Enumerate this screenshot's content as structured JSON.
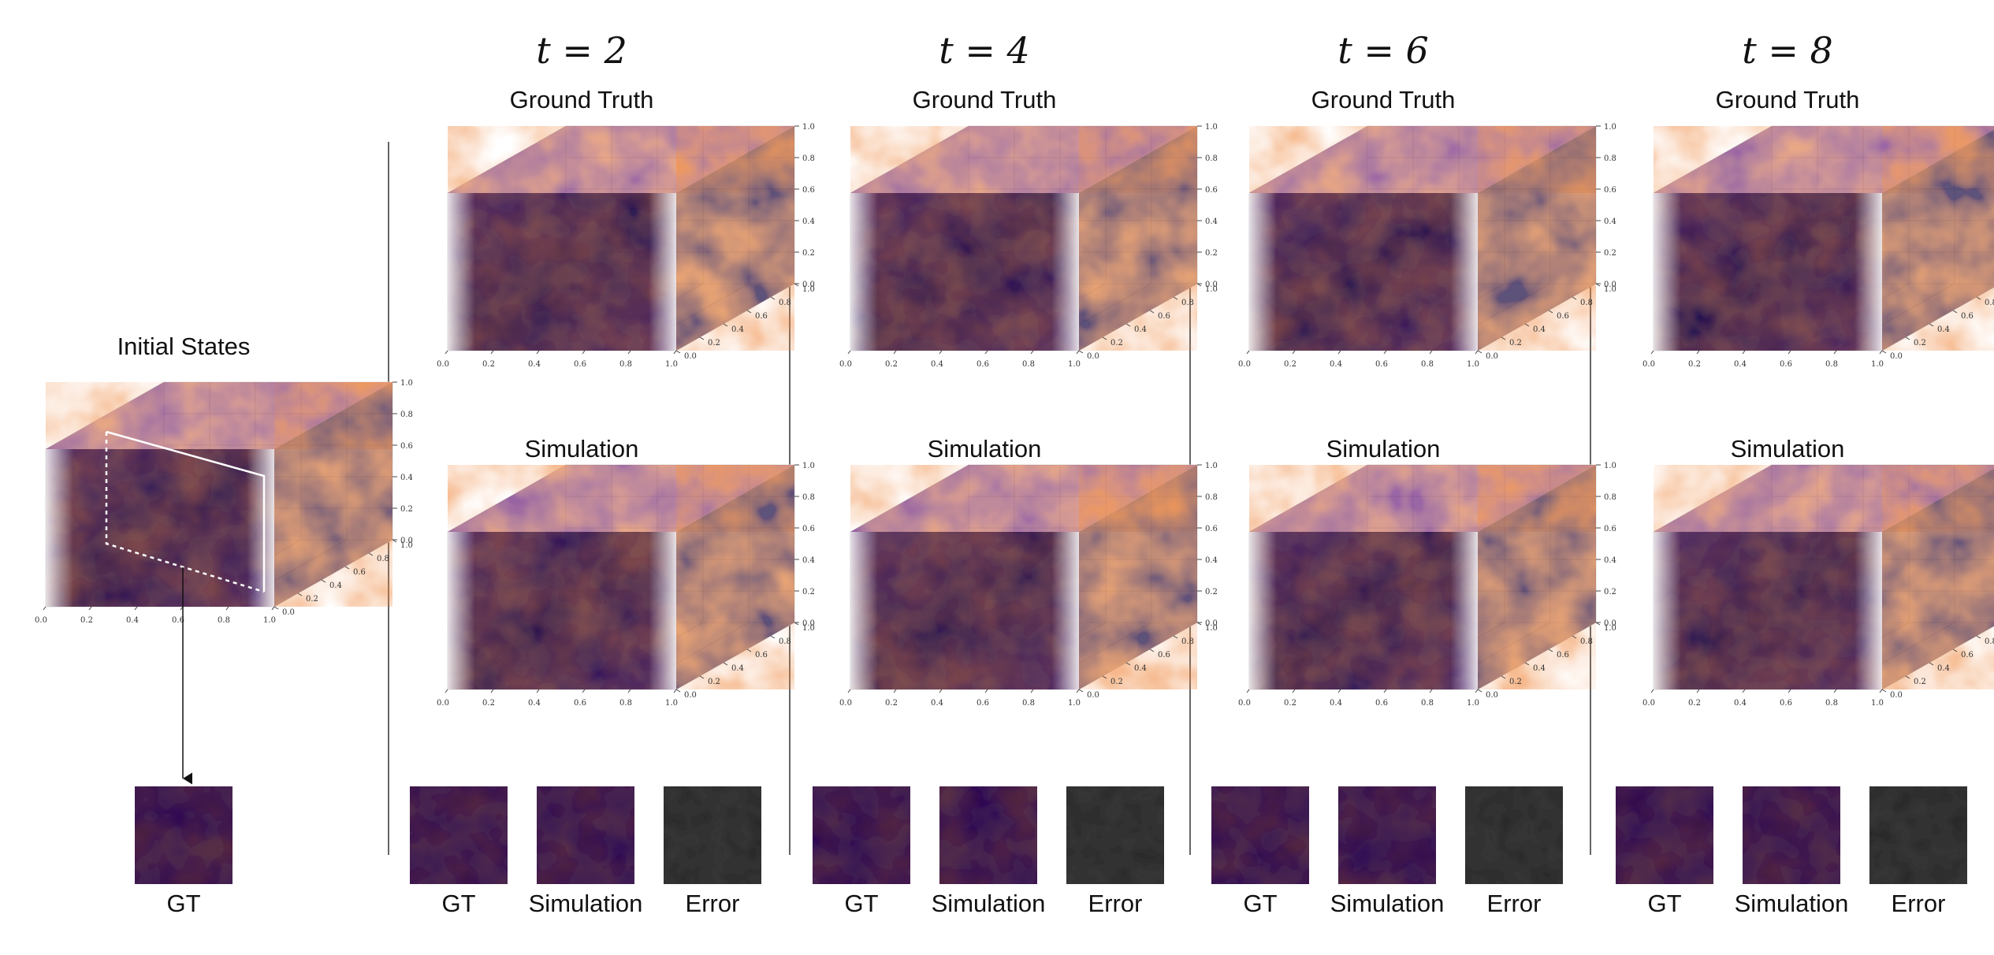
{
  "initial": {
    "title": "Initial States",
    "thumb_label": "GT"
  },
  "time_panels": [
    {
      "time_label": "t = 2",
      "gt_title": "Ground Truth",
      "sim_title": "Simulation",
      "thumbs": [
        "GT",
        "Simulation",
        "Error"
      ]
    },
    {
      "time_label": "t = 4",
      "gt_title": "Ground Truth",
      "sim_title": "Simulation",
      "thumbs": [
        "GT",
        "Simulation",
        "Error"
      ]
    },
    {
      "time_label": "t = 6",
      "gt_title": "Ground Truth",
      "sim_title": "Simulation",
      "thumbs": [
        "GT",
        "Simulation",
        "Error"
      ]
    },
    {
      "time_label": "t = 8",
      "gt_title": "Ground Truth",
      "sim_title": "Simulation",
      "thumbs": [
        "GT",
        "Simulation",
        "Error"
      ]
    }
  ],
  "axis_ticks": [
    "0.0",
    "0.2",
    "0.4",
    "0.6",
    "0.8",
    "1.0"
  ],
  "colors": {
    "field_dark": "#1e0c45",
    "field_mid": "#6b1f7a",
    "field_hot": "#e0703a",
    "field_bright": "#f6b44a",
    "error_bg": "#262626"
  }
}
